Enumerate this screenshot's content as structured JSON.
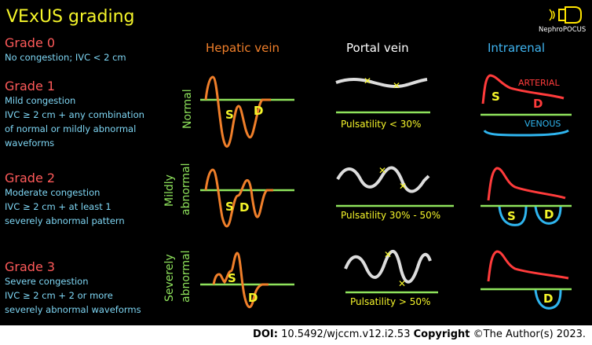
{
  "title": "VExUS grading",
  "logo_text": "NephroPOCUS",
  "grades": [
    {
      "label": "Grade 0",
      "lines": [
        {
          "text": "No congestion; IVC < 2 cm",
          "color": "#7fd7f5"
        }
      ]
    },
    {
      "label": "Grade 1",
      "lines": [
        {
          "text": "Mild congestion",
          "color": "#7fd7f5"
        },
        {
          "text": "IVC  ≥ 2 cm + any combination",
          "color": "#7fd7f5"
        },
        {
          "text": "of normal or mildly abnormal",
          "color": "#7fd7f5"
        },
        {
          "text": "waveforms",
          "color": "#7fd7f5"
        }
      ]
    },
    {
      "label": "Grade 2",
      "lines": [
        {
          "text": "Moderate congestion",
          "color": "#7fd7f5"
        },
        {
          "text": "IVC ≥ 2 cm + at least  1",
          "color": "#7fd7f5"
        },
        {
          "text": "severely abnormal pattern",
          "color": "#7fd7f5"
        }
      ]
    },
    {
      "label": "Grade 3",
      "lines": [
        {
          "text": "Severe congestion",
          "color": "#7fd7f5"
        },
        {
          "text": "IVC ≥ 2 cm +   2    or more",
          "color": "#7fd7f5"
        },
        {
          "text": "severely abnormal waveforms",
          "color": "#7fd7f5"
        }
      ]
    }
  ],
  "columns": {
    "hepatic": "Hepatic vein",
    "portal": "Portal vein",
    "intrarenal": "Intrarenal"
  },
  "rows": [
    {
      "line1": "Normal",
      "line2": ""
    },
    {
      "line1": "Mildly",
      "line2": "abnormal"
    },
    {
      "line1": "Severely",
      "line2": "abnormal"
    }
  ],
  "wave_labels": {
    "s": "S",
    "d": "D",
    "arterial": "ARTERIAL",
    "venous": "VENOUS"
  },
  "pulsatility": [
    "Pulsatility < 30%",
    "Pulsatility 30% - 50%",
    "Pulsatility > 50%"
  ],
  "footer": {
    "doi_label": "DOI:",
    "doi": "10.5492/wjccm.v12.i2.53",
    "copyright_label": "Copyright",
    "copyright": "©The Author(s) 2023."
  },
  "colors": {
    "title": "#f5f52a",
    "grade": "#ff5a5a",
    "hepatic": "#f07f2a",
    "portal": "#ffffff",
    "intrarenal": "#3fb4f0",
    "baseline": "#8fe35c",
    "pulsatility": "#f5f52a",
    "arterial": "#ff3b3b",
    "venous": "#2fb5ef",
    "marker": "#f5f52a"
  }
}
